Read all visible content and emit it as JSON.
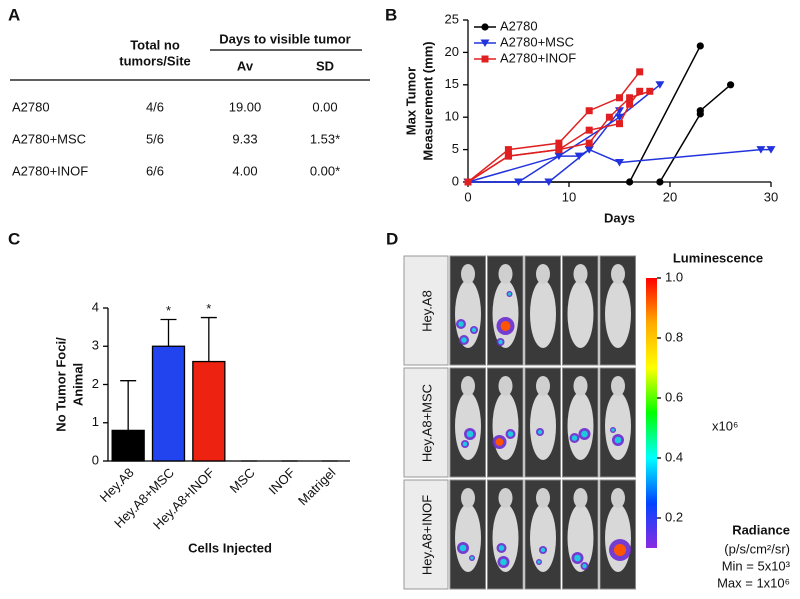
{
  "panel_labels": [
    "A",
    "B",
    "C",
    "D"
  ],
  "table": {
    "header": {
      "count": [
        "Total no",
        "tumors/Site"
      ],
      "group": "Days to visible tumor",
      "sub": [
        "Av",
        "SD"
      ]
    },
    "rows": [
      [
        "A2780",
        "4/6",
        "19.00",
        "0.00"
      ],
      [
        "A2780+MSC",
        "5/6",
        "9.33",
        "1.53*"
      ],
      [
        "A2780+INOF",
        "6/6",
        "4.00",
        "0.00*"
      ]
    ]
  },
  "chart_data": [
    {
      "type": "line",
      "x_label": "Days",
      "y_label": [
        "Max Tumor",
        "Measurement (mm)"
      ],
      "xlim": [
        0,
        30
      ],
      "xticks": [
        0,
        10,
        20,
        30
      ],
      "ylim": [
        0,
        25
      ],
      "yticks": [
        0,
        5,
        10,
        15,
        20,
        25
      ],
      "series": [
        {
          "name": "A2780",
          "color": "#000000",
          "marker": "circle",
          "lines": [
            {
              "x": [
                0,
                16,
                23
              ],
              "values": [
                0,
                0,
                21
              ]
            },
            {
              "x": [
                19,
                23,
                23,
                26
              ],
              "values": [
                0,
                10.5,
                11,
                15
              ]
            }
          ]
        },
        {
          "name": "A2780+MSC",
          "color": "#2233dd",
          "marker": "triangle",
          "lines": [
            {
              "x": [
                0,
                5,
                15,
                19
              ],
              "values": [
                0,
                0,
                10,
                15
              ]
            },
            {
              "x": [
                0,
                8,
                12,
                15
              ],
              "values": [
                0,
                0,
                5,
                11
              ]
            },
            {
              "x": [
                0,
                9,
                11,
                12,
                15,
                29,
                30
              ],
              "values": [
                0,
                4,
                4,
                5,
                3,
                5,
                5
              ]
            }
          ]
        },
        {
          "name": "A2780+INOF",
          "color": "#e02020",
          "marker": "square",
          "lines": [
            {
              "x": [
                0,
                4,
                9,
                12,
                15,
                17
              ],
              "values": [
                0,
                5,
                6,
                11,
                13,
                17
              ]
            },
            {
              "x": [
                0,
                4,
                9,
                12,
                15,
                16,
                17
              ],
              "values": [
                0,
                4,
                5,
                8,
                9,
                12,
                14
              ]
            },
            {
              "x": [
                0,
                4,
                9,
                12,
                14,
                16,
                18
              ],
              "values": [
                0,
                4,
                5,
                6,
                10,
                13,
                14
              ]
            }
          ]
        }
      ]
    },
    {
      "type": "bar",
      "x_label": "Cells Injected",
      "y_label": [
        "No Tumor Foci/",
        "Animal"
      ],
      "categories": [
        "Hey.A8",
        "Hey.A8+MSC",
        "Hey.A8+INOF",
        "MSC",
        "INOF",
        "Matrigel"
      ],
      "values": [
        0.8,
        3.0,
        2.6,
        0,
        0,
        0
      ],
      "errors": [
        1.3,
        0.7,
        1.15,
        0,
        0,
        0
      ],
      "colors": [
        "#000000",
        "#2244ee",
        "#ee2211",
        "#000000",
        "#000000",
        "#000000"
      ],
      "significance": [
        null,
        "*",
        "*",
        null,
        null,
        null
      ],
      "ylim": [
        0,
        4
      ],
      "yticks": [
        0,
        1,
        2,
        3,
        4
      ]
    },
    {
      "type": "colorbar",
      "title": "Luminescence",
      "unit": "x10⁶",
      "colormap": [
        "#ff0000",
        "#ffaa00",
        "#ffff00",
        "#00ff00",
        "#00ffff",
        "#0044ff",
        "#8a2be2"
      ],
      "ylim": [
        0.1,
        1.0
      ],
      "yticks": [
        {
          "value": 1.0,
          "label": "1.0"
        },
        {
          "value": 0.8,
          "label": "0.8"
        },
        {
          "value": 0.6,
          "label": "0.6"
        },
        {
          "value": 0.4,
          "label": "0.4"
        },
        {
          "value": 0.2,
          "label": "0.2"
        }
      ],
      "notes": {
        "title": "Radiance",
        "lines": [
          "(p/s/cm²/sr)",
          "Min = 5x10³",
          "Max = 1x10⁶"
        ]
      }
    }
  ],
  "image_panel": {
    "row_labels": [
      "Hey.A8",
      "Hey.A8+MSC",
      "Hey.A8+INOF"
    ]
  }
}
